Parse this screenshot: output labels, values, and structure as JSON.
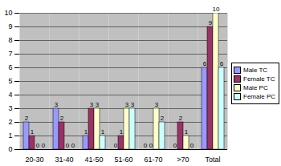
{
  "chart_data": {
    "type": "bar",
    "categories": [
      "20-30",
      "31-40",
      "41-50",
      "51-60",
      "61-70",
      ">70",
      "Total"
    ],
    "series": [
      {
        "name": "Male TC",
        "color": "#9999ff",
        "values": [
          2,
          3,
          1,
          0,
          0,
          0,
          6
        ]
      },
      {
        "name": "Female TC",
        "color": "#993366",
        "values": [
          1,
          2,
          3,
          1,
          0,
          2,
          9
        ]
      },
      {
        "name": "Male PC",
        "color": "#ffffcc",
        "values": [
          0,
          0,
          3,
          3,
          3,
          1,
          10
        ]
      },
      {
        "name": "Female PC",
        "color": "#ccffff",
        "values": [
          0,
          0,
          1,
          3,
          2,
          0,
          6
        ]
      }
    ],
    "ylim": [
      0,
      10
    ],
    "yticks": [
      0,
      1,
      2,
      3,
      4,
      5,
      6,
      7,
      8,
      9,
      10
    ],
    "grid": true,
    "legend": "right",
    "data_labels": true
  }
}
